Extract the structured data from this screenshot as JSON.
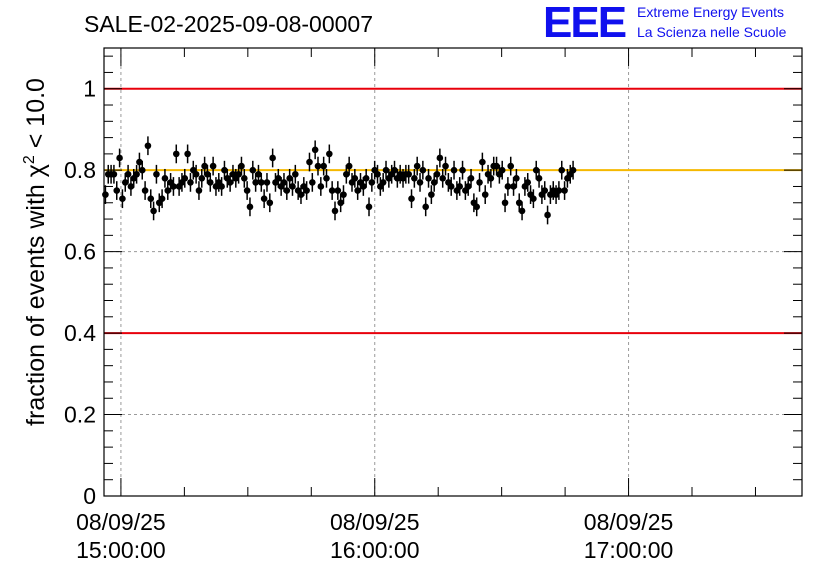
{
  "logo": {
    "mark": "EEE",
    "line1": "Extreme Energy Events",
    "line2": "La Scienza nelle Scuole"
  },
  "colors": {
    "threshold_line": "#e8000b",
    "reference_line": "#f5b800",
    "points": "#000000",
    "grid": "#9a9a9a"
  },
  "chart_data": {
    "type": "scatter",
    "title": "SALE-02-2025-09-08-00007",
    "ylabel": "fraction of events with χ² < 10.0",
    "xlabel": "",
    "ylim": [
      0,
      1.1
    ],
    "xlim": [
      "2025-09-08 14:56:00",
      "2025-09-08 17:41:00"
    ],
    "x_axis": "time",
    "x_ticks": [
      {
        "time": "2025-09-08 15:00:00",
        "label": [
          "08/09/25",
          "15:00:00"
        ]
      },
      {
        "time": "2025-09-08 16:00:00",
        "label": [
          "08/09/25",
          "16:00:00"
        ]
      },
      {
        "time": "2025-09-08 17:00:00",
        "label": [
          "08/09/25",
          "17:00:00"
        ]
      }
    ],
    "y_ticks": [
      0,
      0.2,
      0.4,
      0.6,
      0.8,
      1
    ],
    "y_tick_labels": [
      "0",
      "0.2",
      "0.4",
      "0.6",
      "0.8",
      "1"
    ],
    "grid": true,
    "horizontal_lines": [
      {
        "y": 1.0,
        "color": "#e8000b"
      },
      {
        "y": 0.4,
        "color": "#e8000b"
      },
      {
        "y": 0.8,
        "color": "#f5b800"
      }
    ],
    "start_time": "2025-09-08 14:56:00",
    "bin_minutes": 0.67,
    "error": 0.023,
    "values": [
      0.74,
      0.79,
      0.79,
      0.79,
      0.75,
      0.83,
      0.73,
      0.77,
      0.79,
      0.76,
      0.78,
      0.79,
      0.82,
      0.8,
      0.75,
      0.86,
      0.73,
      0.7,
      0.79,
      0.72,
      0.73,
      0.78,
      0.75,
      0.77,
      0.76,
      0.84,
      0.76,
      0.77,
      0.78,
      0.84,
      0.77,
      0.8,
      0.79,
      0.75,
      0.78,
      0.81,
      0.79,
      0.77,
      0.81,
      0.76,
      0.77,
      0.76,
      0.8,
      0.78,
      0.77,
      0.79,
      0.78,
      0.79,
      0.81,
      0.78,
      0.75,
      0.71,
      0.8,
      0.77,
      0.79,
      0.77,
      0.73,
      0.77,
      0.72,
      0.83,
      0.77,
      0.78,
      0.76,
      0.77,
      0.75,
      0.78,
      0.76,
      0.79,
      0.75,
      0.74,
      0.76,
      0.75,
      0.82,
      0.77,
      0.85,
      0.81,
      0.76,
      0.81,
      0.78,
      0.84,
      0.75,
      0.7,
      0.75,
      0.72,
      0.74,
      0.79,
      0.81,
      0.77,
      0.78,
      0.75,
      0.77,
      0.76,
      0.78,
      0.71,
      0.77,
      0.8,
      0.79,
      0.76,
      0.77,
      0.8,
      0.78,
      0.79,
      0.8,
      0.78,
      0.79,
      0.78,
      0.79,
      0.79,
      0.73,
      0.78,
      0.81,
      0.77,
      0.8,
      0.71,
      0.78,
      0.74,
      0.77,
      0.79,
      0.83,
      0.78,
      0.81,
      0.77,
      0.76,
      0.8,
      0.75,
      0.76,
      0.8,
      0.75,
      0.76,
      0.78,
      0.72,
      0.71,
      0.77,
      0.82,
      0.74,
      0.79,
      0.78,
      0.81,
      0.81,
      0.79,
      0.8,
      0.72,
      0.76,
      0.81,
      0.76,
      0.78,
      0.72,
      0.7,
      0.76,
      0.77,
      0.74,
      0.73,
      0.8,
      0.78,
      0.74,
      0.75,
      0.69,
      0.74,
      0.75,
      0.74,
      0.75,
      0.8,
      0.75,
      0.78,
      0.79,
      0.8
    ]
  }
}
